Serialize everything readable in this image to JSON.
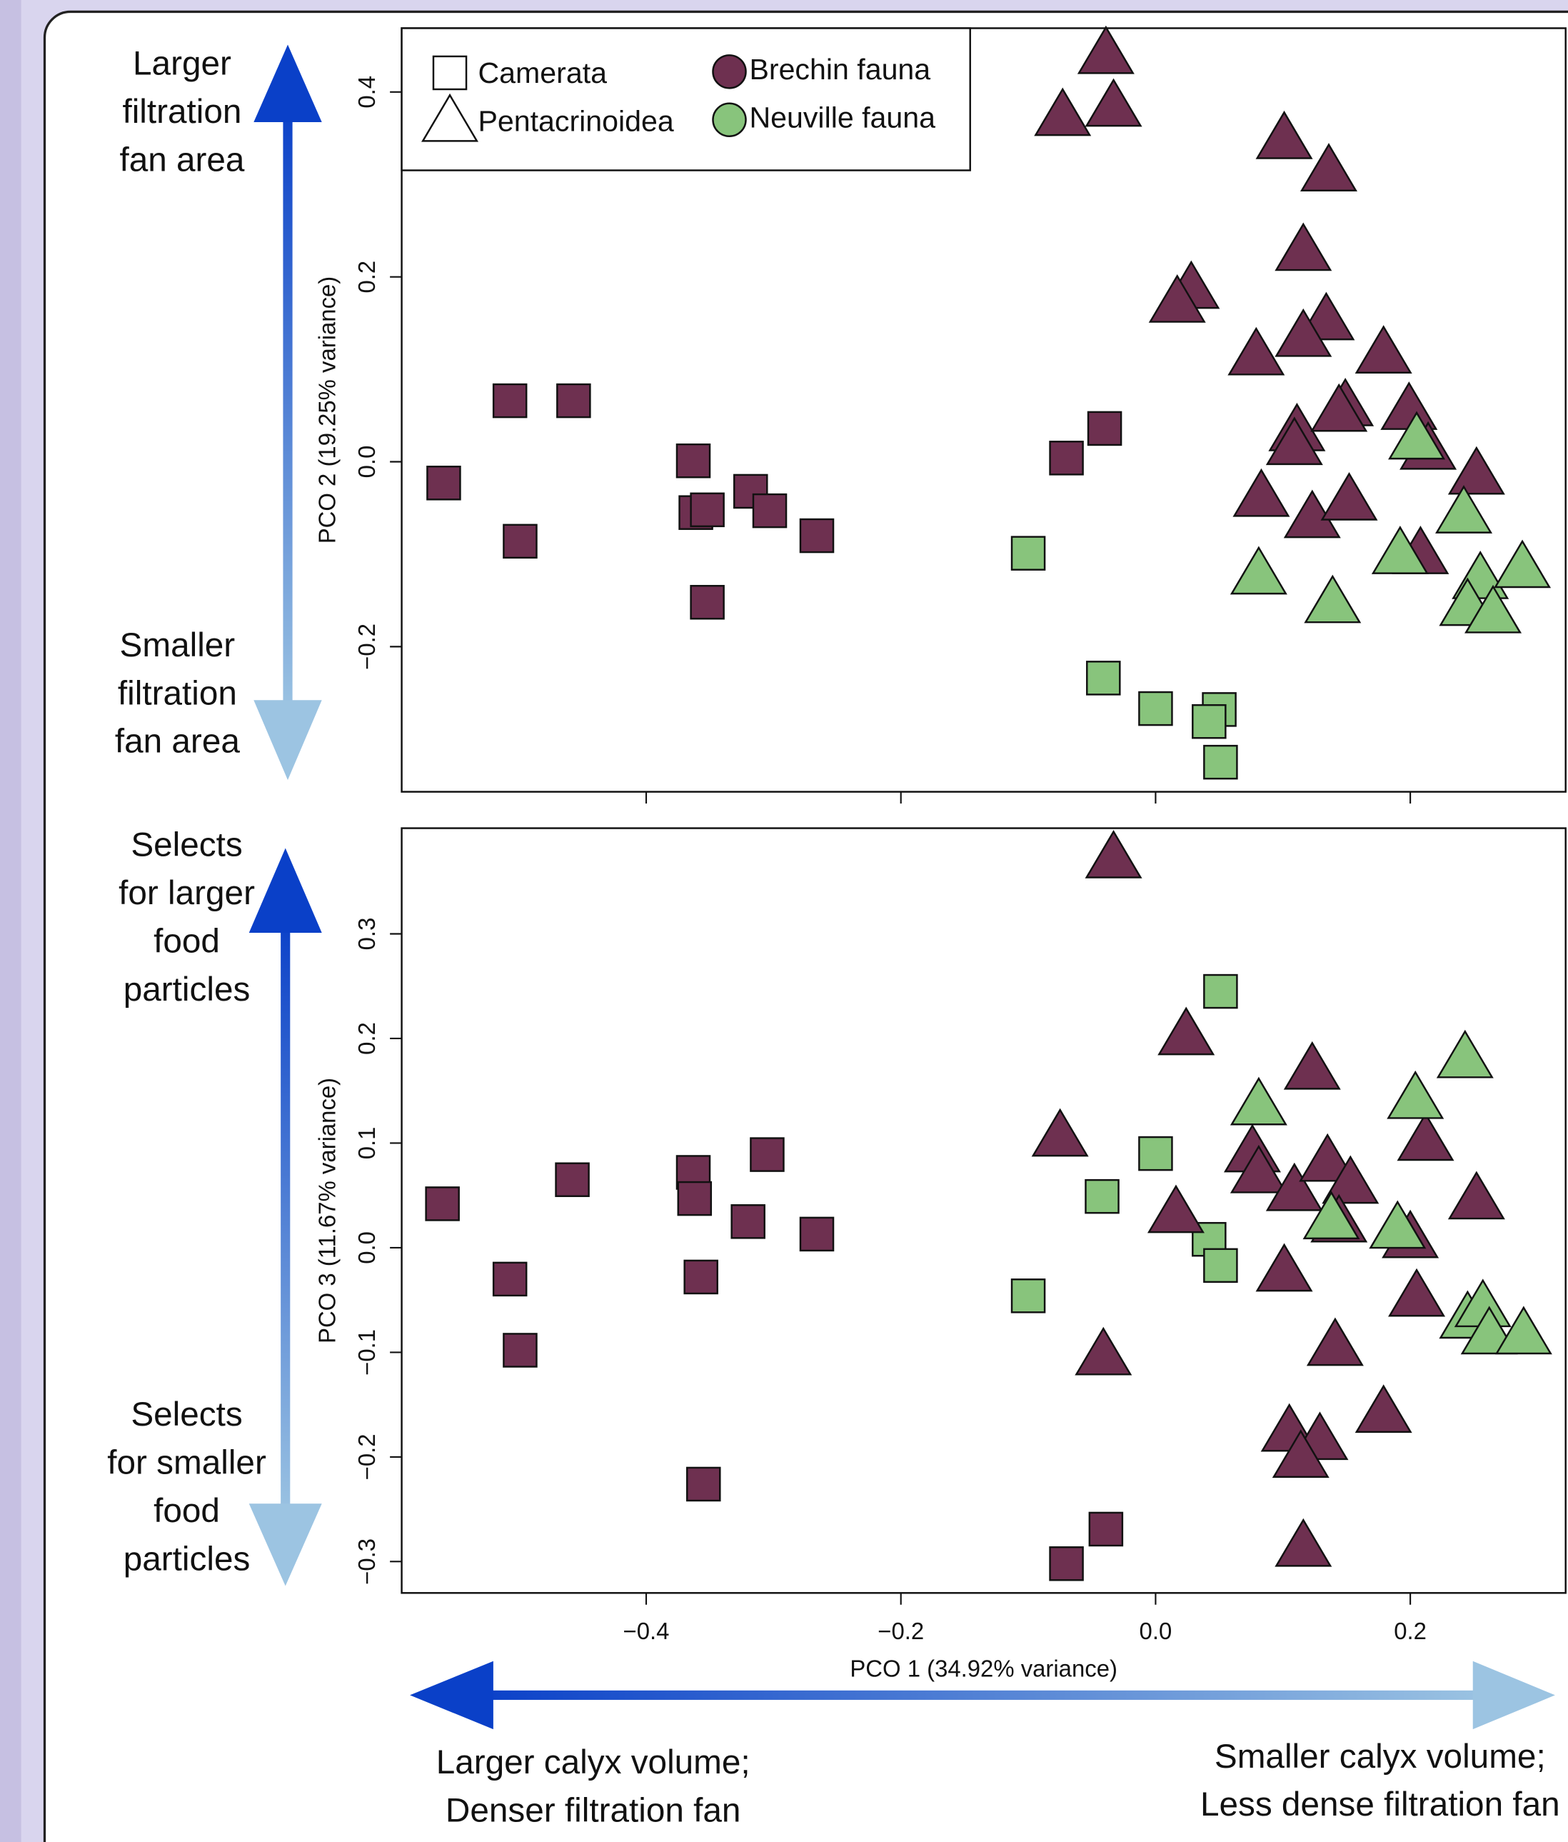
{
  "chart_data": [
    {
      "type": "scatter",
      "ylabel": "PCO 2 (19.25% variance)",
      "xlim": [
        -0.592,
        0.322
      ],
      "ylim": [
        -0.357,
        0.469
      ],
      "xticks": [
        -0.4,
        -0.2,
        0,
        0.2
      ],
      "xtick_labels": false,
      "yticks": [
        0.4,
        0.2,
        {
          "value": 0,
          "label": "0.0"
        },
        {
          "value": -0.2,
          "label": "−0.2"
        }
      ],
      "legend": {
        "position": "upper left",
        "shapes": [
          {
            "name": "Camerata",
            "marker": "square"
          },
          {
            "name": "Pentacrinoidea",
            "marker": "triangle"
          }
        ],
        "groups": [
          {
            "name": "Brechin fauna",
            "color": "#6e3050"
          },
          {
            "name": "Neuville fauna",
            "color": "#88c47c"
          }
        ]
      },
      "arrow_labels": {
        "up": [
          "Larger",
          "filtration",
          "fan area"
        ],
        "down": [
          "Smaller",
          "filtration",
          "fan area"
        ]
      },
      "series": [
        {
          "marker": "square",
          "color": "#6e3050",
          "x": [
            -0.559,
            -0.507,
            -0.457,
            -0.499,
            -0.363,
            -0.361,
            -0.352,
            -0.318,
            -0.303,
            -0.266,
            -0.352,
            -0.07,
            -0.04
          ],
          "y": [
            -0.023,
            0.066,
            0.066,
            -0.086,
            0.001,
            -0.055,
            -0.052,
            -0.032,
            -0.053,
            -0.08,
            -0.152,
            0.004,
            0.036
          ]
        },
        {
          "marker": "square",
          "color": "#88c47c",
          "x": [
            -0.1,
            -0.041,
            0.0,
            0.05,
            0.042,
            0.051
          ],
          "y": [
            -0.099,
            -0.234,
            -0.267,
            -0.268,
            -0.281,
            -0.325
          ]
        },
        {
          "marker": "triangle",
          "color": "#6e3050",
          "x": [
            -0.039,
            -0.073,
            -0.033,
            0.101,
            0.136,
            0.116,
            0.028,
            0.017,
            0.134,
            0.116,
            0.079,
            0.179,
            0.199,
            0.111,
            0.149,
            0.144,
            0.109,
            0.214,
            0.252,
            0.083,
            0.123,
            0.152,
            0.208
          ],
          "y": [
            0.442,
            0.375,
            0.385,
            0.35,
            0.315,
            0.229,
            0.188,
            0.173,
            0.154,
            0.136,
            0.116,
            0.118,
            0.057,
            0.034,
            0.061,
            0.055,
            0.019,
            0.014,
            -0.013,
            -0.037,
            -0.06,
            -0.041,
            -0.099
          ]
        },
        {
          "marker": "triangle",
          "color": "#88c47c",
          "x": [
            0.205,
            0.242,
            0.192,
            0.081,
            0.139,
            0.255,
            0.288,
            0.245,
            0.265
          ],
          "y": [
            0.025,
            -0.055,
            -0.099,
            -0.121,
            -0.152,
            -0.126,
            -0.114,
            -0.155,
            -0.163
          ]
        }
      ]
    },
    {
      "type": "scatter",
      "xlabel": "PCO 1 (34.92% variance)",
      "ylabel": "PCO 3 (11.67% variance)",
      "xlim": [
        -0.592,
        0.322
      ],
      "ylim": [
        -0.33,
        0.401
      ],
      "xticks": [
        {
          "value": -0.4,
          "label": "−0.4"
        },
        {
          "value": -0.2,
          "label": "−0.2"
        },
        {
          "value": 0,
          "label": "0.0"
        },
        0.2
      ],
      "xtick_labels": true,
      "yticks": [
        0.3,
        0.2,
        0.1,
        {
          "value": 0,
          "label": "0.0"
        },
        {
          "value": -0.1,
          "label": "−0.1"
        },
        {
          "value": -0.2,
          "label": "−0.2"
        },
        {
          "value": -0.3,
          "label": "−0.3"
        }
      ],
      "arrow_labels": {
        "up": [
          "Selects",
          "for larger",
          "food",
          "particles"
        ],
        "down": [
          "Selects",
          "for smaller",
          "food",
          "particles"
        ],
        "left": [
          "Larger calyx volume;",
          "Denser filtration fan"
        ],
        "right": [
          "Smaller calyx volume;",
          "Less dense filtration fan"
        ]
      },
      "series": [
        {
          "marker": "square",
          "color": "#6e3050",
          "x": [
            -0.56,
            -0.507,
            -0.499,
            -0.458,
            -0.363,
            -0.362,
            -0.357,
            -0.32,
            -0.305,
            -0.266,
            -0.355,
            -0.039,
            -0.07
          ],
          "y": [
            0.042,
            -0.03,
            -0.098,
            0.065,
            0.072,
            0.047,
            -0.028,
            0.025,
            0.089,
            0.013,
            -0.226,
            -0.269,
            -0.302
          ]
        },
        {
          "marker": "square",
          "color": "#88c47c",
          "x": [
            -0.1,
            -0.042,
            0.0,
            0.042,
            0.051,
            0.051
          ],
          "y": [
            -0.046,
            0.049,
            0.09,
            0.008,
            -0.017,
            0.245
          ]
        },
        {
          "marker": "triangle",
          "color": "#6e3050",
          "x": [
            -0.033,
            0.024,
            -0.075,
            0.123,
            0.076,
            0.081,
            0.109,
            0.135,
            0.153,
            0.144,
            0.212,
            0.252,
            0.016,
            0.2,
            0.101,
            0.205,
            -0.041,
            0.141,
            0.179,
            0.105,
            0.129,
            0.114,
            0.116
          ],
          "y": [
            0.373,
            0.204,
            0.107,
            0.171,
            0.092,
            0.072,
            0.055,
            0.083,
            0.062,
            0.025,
            0.103,
            0.047,
            0.034,
            0.01,
            -0.022,
            -0.046,
            -0.102,
            -0.093,
            -0.157,
            -0.175,
            -0.183,
            -0.2,
            -0.285
          ]
        },
        {
          "marker": "triangle",
          "color": "#88c47c",
          "x": [
            0.243,
            0.204,
            0.081,
            0.138,
            0.19,
            0.245,
            0.257,
            0.262,
            0.289
          ],
          "y": [
            0.182,
            0.143,
            0.137,
            0.028,
            0.019,
            -0.067,
            -0.056,
            -0.082,
            -0.082
          ]
        }
      ]
    }
  ]
}
